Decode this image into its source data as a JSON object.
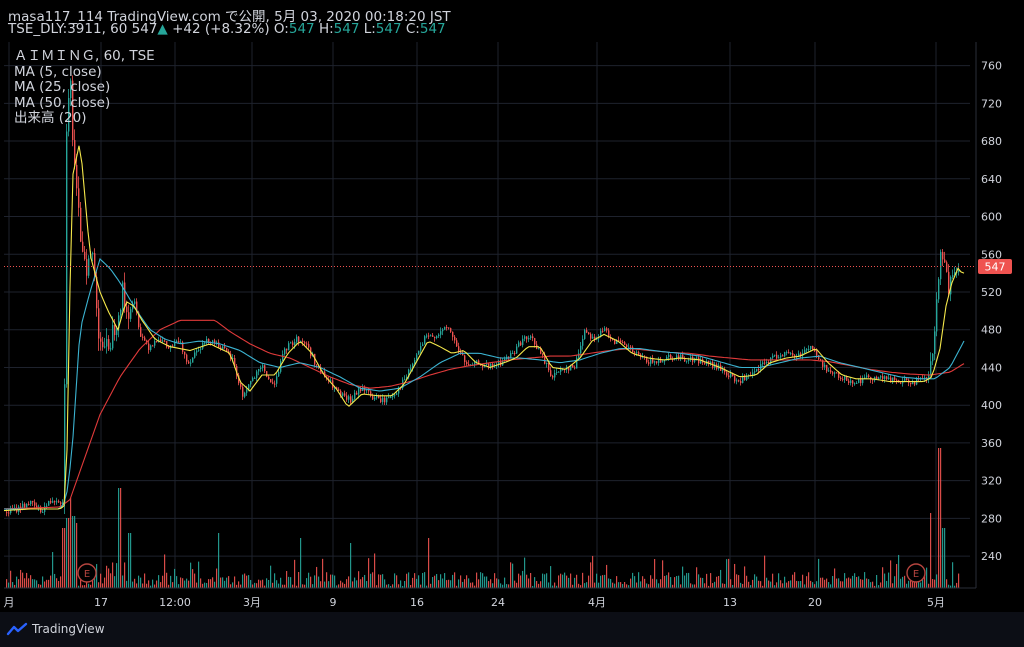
{
  "header": {
    "line1": "masa117_114 TradingView.com で公開, 5月 03, 2020 00:18:20 JST",
    "symbol": "TSE_DLY:3911, 60",
    "last": "547",
    "up_arrow": "▲",
    "change": "+42 (+8.32%)",
    "o_label": "O:",
    "o": "547",
    "h_label": "H:",
    "h": "547",
    "l_label": "L:",
    "l": "547",
    "c_label": "C:",
    "c": "547"
  },
  "legend": {
    "title": "ＡＩＭＩＮＧ, 60, TSE",
    "ma5": "MA (5, close)",
    "ma25": "MA (25, close)",
    "ma50": "MA (50, close)",
    "volume": "出来高 (20)"
  },
  "footer": {
    "brand": "TradingView"
  },
  "colors": {
    "up": "#26a69a",
    "down": "#ef5350",
    "ma5": "#f5e84b",
    "ma25": "#3bb3d1",
    "ma50": "#e03a3a",
    "grid": "#1e222d",
    "axis_text": "#d1d4dc",
    "price_line": "#ef5350",
    "earnings": "#b5453f"
  },
  "chart_data": {
    "type": "candlestick",
    "y_axis": {
      "range": [
        220,
        785
      ],
      "ticks": [
        240,
        280,
        320,
        360,
        400,
        440,
        480,
        520,
        560,
        600,
        640,
        680,
        720,
        760
      ]
    },
    "x_axis": {
      "tick_labels": [
        "月",
        "17",
        "12:00",
        "3月",
        "9",
        "16",
        "24",
        "4月",
        "13",
        "20",
        "5月"
      ]
    },
    "last_price": 547,
    "earnings_markers": [
      "E",
      "E"
    ],
    "price_anchors": [
      [
        0,
        285
      ],
      [
        15,
        289
      ],
      [
        28,
        297
      ],
      [
        40,
        288
      ],
      [
        52,
        300
      ],
      [
        58,
        300
      ],
      [
        63,
        295
      ],
      [
        66,
        700
      ],
      [
        70,
        740
      ],
      [
        73,
        660
      ],
      [
        76,
        620
      ],
      [
        80,
        580
      ],
      [
        86,
        548
      ],
      [
        92,
        560
      ],
      [
        98,
        480
      ],
      [
        104,
        455
      ],
      [
        110,
        470
      ],
      [
        116,
        492
      ],
      [
        122,
        520
      ],
      [
        126,
        497
      ],
      [
        134,
        508
      ],
      [
        140,
        475
      ],
      [
        148,
        462
      ],
      [
        158,
        472
      ],
      [
        168,
        460
      ],
      [
        178,
        468
      ],
      [
        188,
        445
      ],
      [
        198,
        462
      ],
      [
        210,
        470
      ],
      [
        220,
        462
      ],
      [
        232,
        448
      ],
      [
        242,
        410
      ],
      [
        250,
        425
      ],
      [
        262,
        440
      ],
      [
        272,
        420
      ],
      [
        285,
        460
      ],
      [
        296,
        470
      ],
      [
        305,
        466
      ],
      [
        318,
        438
      ],
      [
        330,
        423
      ],
      [
        340,
        410
      ],
      [
        350,
        405
      ],
      [
        362,
        420
      ],
      [
        372,
        408
      ],
      [
        384,
        405
      ],
      [
        396,
        415
      ],
      [
        406,
        430
      ],
      [
        414,
        448
      ],
      [
        424,
        470
      ],
      [
        436,
        475
      ],
      [
        448,
        482
      ],
      [
        458,
        458
      ],
      [
        468,
        440
      ],
      [
        478,
        445
      ],
      [
        488,
        440
      ],
      [
        500,
        445
      ],
      [
        512,
        455
      ],
      [
        522,
        470
      ],
      [
        532,
        470
      ],
      [
        542,
        450
      ],
      [
        552,
        430
      ],
      [
        562,
        440
      ],
      [
        574,
        440
      ],
      [
        584,
        480
      ],
      [
        594,
        470
      ],
      [
        604,
        480
      ],
      [
        614,
        468
      ],
      [
        626,
        462
      ],
      [
        640,
        450
      ],
      [
        654,
        445
      ],
      [
        668,
        452
      ],
      [
        682,
        450
      ],
      [
        696,
        448
      ],
      [
        710,
        443
      ],
      [
        722,
        437
      ],
      [
        736,
        425
      ],
      [
        750,
        430
      ],
      [
        762,
        443
      ],
      [
        772,
        450
      ],
      [
        782,
        455
      ],
      [
        796,
        452
      ],
      [
        810,
        463
      ],
      [
        820,
        445
      ],
      [
        830,
        435
      ],
      [
        842,
        428
      ],
      [
        856,
        425
      ],
      [
        870,
        430
      ],
      [
        884,
        428
      ],
      [
        898,
        425
      ],
      [
        910,
        425
      ],
      [
        922,
        426
      ],
      [
        928,
        430
      ],
      [
        932,
        455
      ],
      [
        936,
        505
      ],
      [
        940,
        560
      ],
      [
        944,
        545
      ],
      [
        948,
        525
      ],
      [
        952,
        540
      ],
      [
        956,
        545
      ],
      [
        960,
        547
      ]
    ],
    "ma5_anchors": [
      [
        0,
        288
      ],
      [
        30,
        290
      ],
      [
        60,
        290
      ],
      [
        66,
        295
      ],
      [
        72,
        640
      ],
      [
        80,
        680
      ],
      [
        90,
        560
      ],
      [
        100,
        520
      ],
      [
        108,
        500
      ],
      [
        118,
        480
      ],
      [
        126,
        510
      ],
      [
        134,
        505
      ],
      [
        142,
        490
      ],
      [
        155,
        470
      ],
      [
        170,
        462
      ],
      [
        190,
        458
      ],
      [
        210,
        465
      ],
      [
        230,
        455
      ],
      [
        240,
        425
      ],
      [
        250,
        415
      ],
      [
        262,
        432
      ],
      [
        275,
        432
      ],
      [
        288,
        455
      ],
      [
        300,
        468
      ],
      [
        312,
        455
      ],
      [
        324,
        432
      ],
      [
        336,
        418
      ],
      [
        348,
        398
      ],
      [
        362,
        412
      ],
      [
        378,
        410
      ],
      [
        392,
        410
      ],
      [
        404,
        422
      ],
      [
        416,
        445
      ],
      [
        428,
        468
      ],
      [
        440,
        462
      ],
      [
        452,
        455
      ],
      [
        464,
        458
      ],
      [
        476,
        445
      ],
      [
        490,
        440
      ],
      [
        504,
        445
      ],
      [
        516,
        450
      ],
      [
        528,
        462
      ],
      [
        540,
        462
      ],
      [
        552,
        440
      ],
      [
        566,
        438
      ],
      [
        580,
        450
      ],
      [
        592,
        468
      ],
      [
        604,
        475
      ],
      [
        618,
        468
      ],
      [
        632,
        455
      ],
      [
        648,
        450
      ],
      [
        664,
        448
      ],
      [
        680,
        450
      ],
      [
        700,
        448
      ],
      [
        720,
        440
      ],
      [
        740,
        430
      ],
      [
        756,
        432
      ],
      [
        770,
        445
      ],
      [
        786,
        450
      ],
      [
        800,
        452
      ],
      [
        816,
        460
      ],
      [
        828,
        445
      ],
      [
        842,
        432
      ],
      [
        856,
        428
      ],
      [
        872,
        428
      ],
      [
        890,
        425
      ],
      [
        910,
        425
      ],
      [
        924,
        425
      ],
      [
        932,
        430
      ],
      [
        940,
        460
      ],
      [
        946,
        505
      ],
      [
        952,
        530
      ],
      [
        958,
        545
      ],
      [
        962,
        540
      ]
    ],
    "ma25_anchors": [
      [
        0,
        290
      ],
      [
        60,
        290
      ],
      [
        66,
        300
      ],
      [
        72,
        350
      ],
      [
        80,
        480
      ],
      [
        90,
        520
      ],
      [
        100,
        555
      ],
      [
        110,
        545
      ],
      [
        120,
        530
      ],
      [
        130,
        512
      ],
      [
        140,
        495
      ],
      [
        150,
        480
      ],
      [
        165,
        470
      ],
      [
        180,
        465
      ],
      [
        200,
        468
      ],
      [
        220,
        465
      ],
      [
        240,
        458
      ],
      [
        260,
        445
      ],
      [
        280,
        440
      ],
      [
        300,
        445
      ],
      [
        320,
        440
      ],
      [
        340,
        430
      ],
      [
        360,
        418
      ],
      [
        380,
        415
      ],
      [
        400,
        418
      ],
      [
        420,
        430
      ],
      [
        440,
        445
      ],
      [
        460,
        455
      ],
      [
        480,
        455
      ],
      [
        500,
        450
      ],
      [
        520,
        450
      ],
      [
        540,
        448
      ],
      [
        560,
        445
      ],
      [
        580,
        448
      ],
      [
        600,
        455
      ],
      [
        620,
        460
      ],
      [
        640,
        460
      ],
      [
        660,
        457
      ],
      [
        680,
        455
      ],
      [
        700,
        452
      ],
      [
        720,
        446
      ],
      [
        740,
        440
      ],
      [
        760,
        440
      ],
      [
        780,
        445
      ],
      [
        800,
        450
      ],
      [
        820,
        452
      ],
      [
        840,
        445
      ],
      [
        860,
        440
      ],
      [
        880,
        435
      ],
      [
        900,
        430
      ],
      [
        920,
        428
      ],
      [
        935,
        428
      ],
      [
        950,
        440
      ],
      [
        965,
        470
      ]
    ],
    "ma50_anchors": [
      [
        0,
        290
      ],
      [
        60,
        292
      ],
      [
        70,
        300
      ],
      [
        80,
        330
      ],
      [
        100,
        390
      ],
      [
        120,
        430
      ],
      [
        140,
        460
      ],
      [
        160,
        480
      ],
      [
        180,
        490
      ],
      [
        200,
        490
      ],
      [
        215,
        490
      ],
      [
        230,
        478
      ],
      [
        250,
        465
      ],
      [
        270,
        455
      ],
      [
        290,
        450
      ],
      [
        310,
        440
      ],
      [
        330,
        430
      ],
      [
        350,
        422
      ],
      [
        370,
        418
      ],
      [
        390,
        420
      ],
      [
        410,
        425
      ],
      [
        430,
        432
      ],
      [
        450,
        438
      ],
      [
        470,
        442
      ],
      [
        490,
        445
      ],
      [
        510,
        448
      ],
      [
        530,
        450
      ],
      [
        550,
        452
      ],
      [
        570,
        452
      ],
      [
        590,
        455
      ],
      [
        610,
        458
      ],
      [
        630,
        460
      ],
      [
        650,
        458
      ],
      [
        670,
        456
      ],
      [
        690,
        455
      ],
      [
        710,
        452
      ],
      [
        730,
        450
      ],
      [
        750,
        448
      ],
      [
        770,
        448
      ],
      [
        790,
        448
      ],
      [
        810,
        448
      ],
      [
        830,
        446
      ],
      [
        850,
        442
      ],
      [
        870,
        438
      ],
      [
        890,
        435
      ],
      [
        910,
        433
      ],
      [
        930,
        432
      ],
      [
        950,
        435
      ],
      [
        970,
        448
      ]
    ],
    "volume_spikes": [
      [
        63,
        60
      ],
      [
        67,
        70
      ],
      [
        70,
        90
      ],
      [
        73,
        72
      ],
      [
        76,
        65
      ],
      [
        119,
        100
      ],
      [
        129,
        55
      ],
      [
        218,
        55
      ],
      [
        300,
        50
      ],
      [
        350,
        45
      ],
      [
        428,
        50
      ],
      [
        930,
        75
      ],
      [
        939,
        140
      ],
      [
        943,
        60
      ]
    ]
  }
}
